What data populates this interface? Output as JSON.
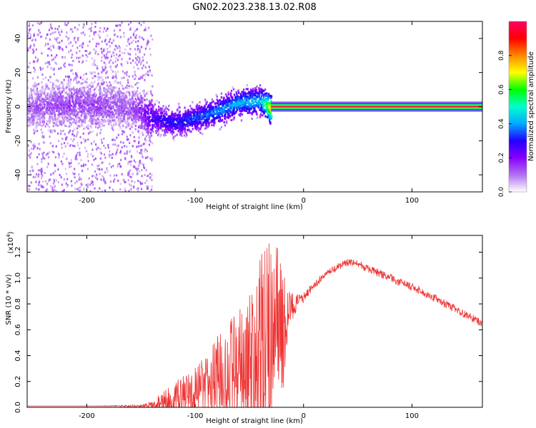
{
  "title": "GN02.2023.238.13.02.R08",
  "chart_data": [
    {
      "type": "heatmap",
      "xlabel": "Height of straight line (km)",
      "ylabel": "Frequency (Hz)",
      "xlim": [
        -255,
        165
      ],
      "ylim": [
        -50,
        50
      ],
      "xticks": [
        -200,
        -100,
        0,
        100
      ],
      "xtick_labels": [
        "-200",
        "-100",
        "0",
        "100"
      ],
      "yticks": [
        -40,
        -20,
        0,
        20,
        40
      ],
      "ytick_labels": [
        "-40",
        "-20",
        "0",
        "20",
        "40"
      ],
      "colorbar": {
        "label": "Normalized spectral amplitude",
        "range": [
          0,
          1
        ],
        "ticks": [
          0,
          0.2,
          0.4,
          0.6,
          0.8
        ],
        "tick_labels": [
          "0.0",
          "0.2",
          "0.4",
          "0.6",
          "0.8"
        ],
        "colors": [
          "#ffffff",
          "#b070f0",
          "#8800ff",
          "#2200ff",
          "#00aaff",
          "#00ffcc",
          "#00ff00",
          "#ffff00",
          "#ff8800",
          "#ff0000",
          "#ff0066"
        ]
      },
      "ridge": {
        "x": [
          -250,
          -220,
          -190,
          -160,
          -140,
          -120,
          -100,
          -80,
          -60,
          -40,
          -30,
          -20,
          -10,
          0,
          50,
          100,
          165
        ],
        "frequency": [
          0,
          2,
          1,
          0,
          -6,
          -9,
          -6,
          -2,
          3,
          4,
          -1,
          -1,
          0,
          0,
          0,
          0,
          0
        ],
        "amplitude": [
          0.12,
          0.15,
          0.14,
          0.12,
          0.28,
          0.32,
          0.35,
          0.4,
          0.42,
          0.45,
          0.8,
          0.9,
          0.95,
          1.0,
          1.0,
          1.0,
          1.0
        ]
      }
    },
    {
      "type": "line",
      "xlabel": "Height of straight line (km)",
      "ylabel": "SNR (10 * v/v)",
      "scale_label": "(x10",
      "scale_exponent": "4",
      "scale_suffix": ")",
      "xlim": [
        -255,
        165
      ],
      "ylim": [
        0,
        1.33
      ],
      "xticks": [
        -200,
        -100,
        0,
        100
      ],
      "xtick_labels": [
        "-200",
        "-100",
        "0",
        "100"
      ],
      "yticks": [
        0,
        0.2,
        0.4,
        0.6,
        0.8,
        1.0,
        1.2
      ],
      "ytick_labels": [
        "0.0",
        "0.2",
        "0.4",
        "0.6",
        "0.8",
        "1.0",
        "1.2"
      ],
      "color": "#ee3333",
      "series": [
        {
          "x": [
            -255,
            -200,
            -150,
            -140,
            -130,
            -120,
            -110,
            -100,
            -90,
            -80,
            -70,
            -60,
            -50,
            -40,
            -35,
            -30,
            -25,
            -20,
            -15,
            -10,
            -5,
            0,
            10,
            20,
            30,
            40,
            50,
            60,
            80,
            100,
            120,
            140,
            165
          ],
          "y": [
            0.01,
            0.01,
            0.01,
            0.02,
            0.04,
            0.07,
            0.1,
            0.12,
            0.15,
            0.2,
            0.25,
            0.3,
            0.35,
            0.4,
            0.5,
            0.6,
            0.8,
            0.55,
            0.7,
            0.78,
            0.82,
            0.85,
            0.95,
            1.02,
            1.08,
            1.12,
            1.11,
            1.07,
            1.0,
            0.93,
            0.85,
            0.76,
            0.65
          ],
          "peak_fluctuation": [
            0,
            0,
            0.01,
            0.03,
            0.08,
            0.12,
            0.15,
            0.2,
            0.25,
            0.35,
            0.4,
            0.45,
            0.55,
            0.75,
            0.8,
            0.8,
            0.5,
            0.6,
            0.25,
            0.12,
            0.06,
            0.04,
            0.03,
            0.03,
            0.03,
            0.03,
            0.03,
            0.03,
            0.03,
            0.03,
            0.03,
            0.03,
            0.03
          ]
        }
      ]
    }
  ]
}
